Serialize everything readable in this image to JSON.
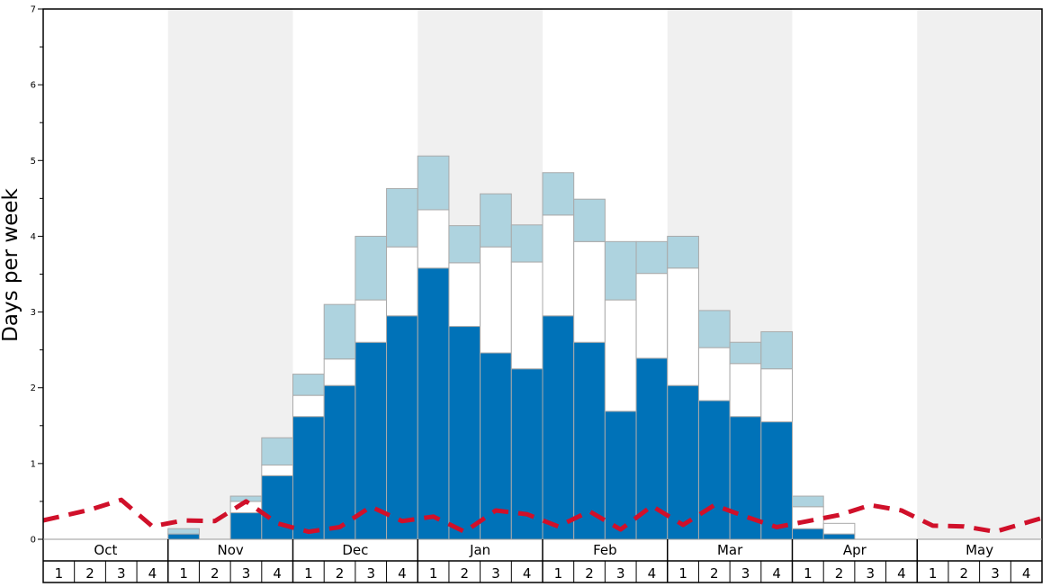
{
  "chart_data": {
    "type": "bar",
    "stacked": true,
    "ylabel": "Days per week",
    "ylim": [
      0,
      7
    ],
    "y_major_ticks": [
      0,
      1,
      2,
      3,
      4,
      5,
      6,
      7
    ],
    "y_minor_step": 0.5,
    "grid": false,
    "months": [
      "Oct",
      "Nov",
      "Dec",
      "Jan",
      "Feb",
      "Mar",
      "Apr",
      "May"
    ],
    "week_labels": [
      "1",
      "2",
      "3",
      "4"
    ],
    "shaded_months": [
      "Nov",
      "Jan",
      "Mar",
      "May"
    ],
    "colors": {
      "base": "#0072b8",
      "middle": "#ffffff",
      "top": "#aed3df",
      "line": "#d0102a",
      "shade": "#f0f0f0",
      "bar_edge": "#aaaaaa"
    },
    "series": [
      {
        "values": [
          0,
          0,
          0,
          0,
          0.07,
          0,
          0.35,
          0.84,
          1.62,
          2.03,
          2.6,
          2.95,
          3.58,
          2.81,
          2.46,
          2.25,
          2.95,
          2.6,
          1.69,
          2.39,
          2.03,
          1.83,
          1.62,
          1.55,
          0.14,
          0.07,
          0,
          0,
          0,
          0,
          0,
          0
        ]
      },
      {
        "values": [
          0,
          0,
          0,
          0,
          0,
          0,
          0.15,
          0.14,
          0.28,
          0.35,
          0.56,
          0.91,
          0.77,
          0.84,
          1.4,
          1.41,
          1.33,
          1.33,
          1.47,
          1.12,
          1.55,
          0.7,
          0.7,
          0.7,
          0.29,
          0.14,
          0,
          0,
          0,
          0,
          0,
          0
        ]
      },
      {
        "values": [
          0,
          0,
          0,
          0,
          0.07,
          0,
          0.07,
          0.36,
          0.28,
          0.72,
          0.84,
          0.77,
          0.71,
          0.49,
          0.7,
          0.49,
          0.56,
          0.56,
          0.77,
          0.42,
          0.42,
          0.49,
          0.28,
          0.49,
          0.14,
          0,
          0,
          0,
          0,
          0,
          0,
          0
        ]
      },
      {
        "type": "line",
        "dashed": true,
        "values": [
          0.25,
          0.39,
          0.52,
          0.17,
          0.25,
          0.24,
          0.5,
          0.21,
          0.1,
          0.16,
          0.43,
          0.24,
          0.3,
          0.1,
          0.38,
          0.33,
          0.17,
          0.37,
          0.13,
          0.44,
          0.19,
          0.45,
          0.3,
          0.16,
          0.24,
          0.32,
          0.45,
          0.38,
          0.18,
          0.17,
          0.1,
          0.28
        ]
      }
    ]
  }
}
